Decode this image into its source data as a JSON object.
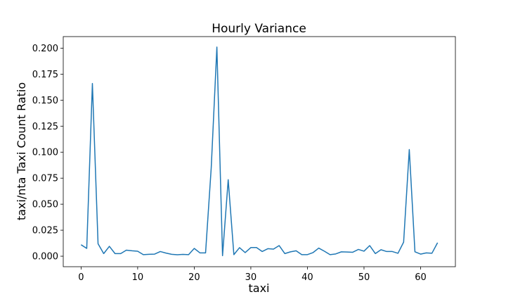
{
  "chart_data": {
    "type": "line",
    "title": "Hourly Variance",
    "xlabel": "taxi",
    "ylabel": "taxi/nta Taxi Count Ratio",
    "xlim": [
      -3.15,
      66.15
    ],
    "ylim": [
      -0.0101,
      0.2111
    ],
    "xticks": [
      0,
      10,
      20,
      30,
      40,
      50,
      60
    ],
    "xtick_labels": [
      "0",
      "10",
      "20",
      "30",
      "40",
      "50",
      "60"
    ],
    "yticks": [
      0.0,
      0.025,
      0.05,
      0.075,
      0.1,
      0.125,
      0.15,
      0.175,
      0.2
    ],
    "ytick_labels": [
      "0.000",
      "0.025",
      "0.050",
      "0.075",
      "0.100",
      "0.125",
      "0.150",
      "0.175",
      "0.200"
    ],
    "grid": false,
    "color": "#1f77b4",
    "series": [
      {
        "x": [
          0,
          1,
          2,
          3,
          4,
          5,
          6,
          7,
          8,
          9,
          10,
          11,
          12,
          13,
          14,
          15,
          16,
          17,
          18,
          19,
          20,
          21,
          22,
          23,
          24,
          25,
          26,
          27,
          28,
          29,
          30,
          31,
          32,
          33,
          34,
          35,
          36,
          37,
          38,
          39,
          40,
          41,
          42,
          43,
          44,
          45,
          46,
          47,
          48,
          49,
          50,
          51,
          52,
          53,
          54,
          55,
          56,
          57,
          58,
          59,
          60,
          61,
          62,
          63
        ],
        "values": [
          0.011,
          0.0075,
          0.166,
          0.012,
          0.0025,
          0.0095,
          0.0025,
          0.0025,
          0.0058,
          0.0052,
          0.0048,
          0.0015,
          0.0018,
          0.002,
          0.0045,
          0.003,
          0.0018,
          0.0014,
          0.0017,
          0.0015,
          0.0075,
          0.0032,
          0.0032,
          0.085,
          0.201,
          0.0005,
          0.0735,
          0.0015,
          0.0082,
          0.0035,
          0.0083,
          0.0083,
          0.0045,
          0.0072,
          0.0068,
          0.0102,
          0.0025,
          0.0042,
          0.0052,
          0.0015,
          0.0015,
          0.0035,
          0.0078,
          0.0048,
          0.0015,
          0.0022,
          0.0042,
          0.004,
          0.0038,
          0.0065,
          0.0048,
          0.0102,
          0.0025,
          0.0062,
          0.0045,
          0.0045,
          0.0028,
          0.0135,
          0.1025,
          0.0042,
          0.002,
          0.0032,
          0.0028,
          0.013
        ]
      }
    ]
  }
}
